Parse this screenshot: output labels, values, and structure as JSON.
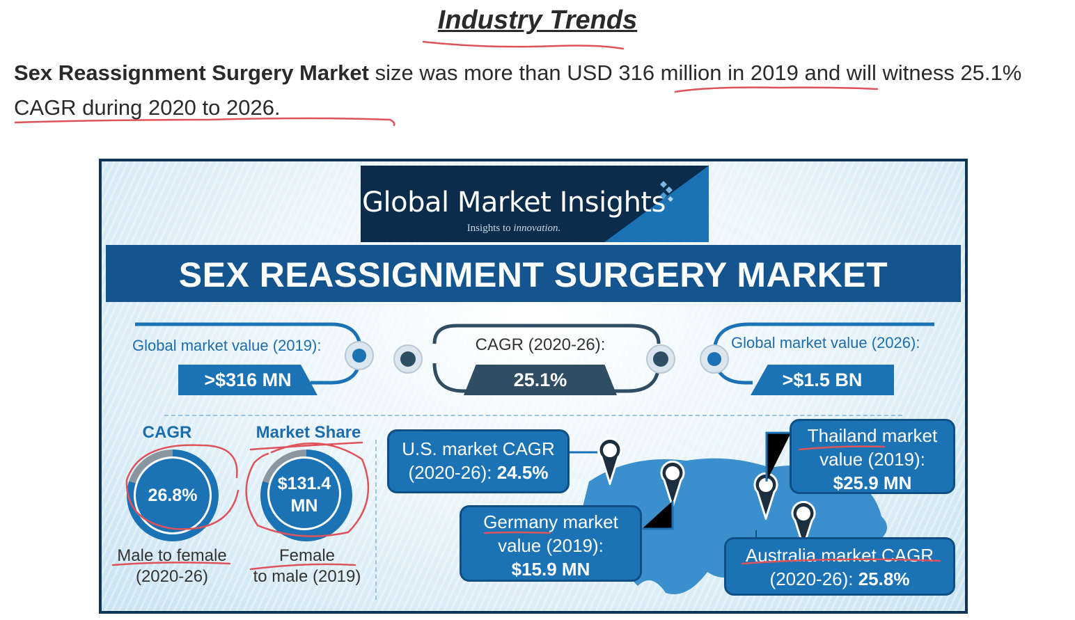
{
  "page": {
    "heading": "Industry Trends",
    "intro_bold": "Sex Reassignment Surgery Market",
    "intro_rest": " size was more than USD 316 million in 2019 and will witness 25.1% CAGR during 2020 to 2026."
  },
  "infographic": {
    "logo_title": "Global Market Insights",
    "logo_tagline_prefix": "Insights to ",
    "logo_tagline_em": "innovation.",
    "title": "SEX REASSIGNMENT SURGERY MARKET",
    "stats": {
      "global_2019_label": "Global market value (2019):",
      "global_2019_value": ">$316 MN",
      "cagr_label": "CAGR (2020-26):",
      "cagr_value": "25.1%",
      "global_2026_label": "Global market value (2026):",
      "global_2026_value": ">$1.5 BN"
    },
    "cagr_block": {
      "heading": "CAGR",
      "value": "26.8%",
      "caption_line1": "Male to female",
      "caption_line2": "(2020-26)"
    },
    "share_block": {
      "heading": "Market Share",
      "value_line1": "$131.4",
      "value_line2": "MN",
      "caption_line1": "Female",
      "caption_line2": "to male (2019)"
    },
    "callouts": {
      "us_line1": "U.S. market CAGR",
      "us_line2_prefix": "(2020-26): ",
      "us_value": "24.5%",
      "germany_line1": "Germany market",
      "germany_line2": "value (2019):",
      "germany_value": "$15.9 MN",
      "thailand_line1": "Thailand market",
      "thailand_line2": "value (2019):",
      "thailand_value": "$25.9 MN",
      "australia_line1": "Australia market CAGR",
      "australia_line2_prefix": "(2020-26): ",
      "australia_value": "25.8%"
    }
  },
  "colors": {
    "brand_blue": "#1b72b5",
    "navy": "#0b2c4a",
    "annotation_red": "#e0525a"
  }
}
